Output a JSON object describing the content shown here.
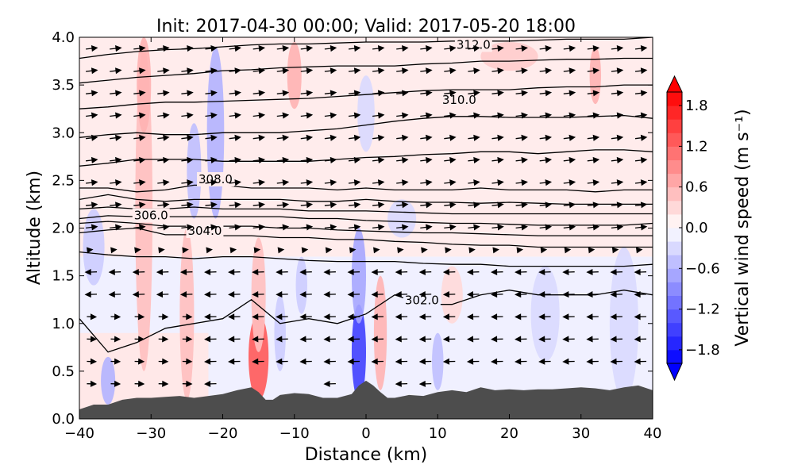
{
  "chart_data": {
    "type": "contour",
    "title": "Init: 2017-04-30 00:00; Valid: 2017-05-20 18:00",
    "xlabel": "Distance (km)",
    "ylabel": "Altitude (km)",
    "xlim": [
      -40,
      40
    ],
    "ylim": [
      0.0,
      4.0
    ],
    "x_ticks": [
      -40,
      -30,
      -20,
      -10,
      0,
      10,
      20,
      30,
      40
    ],
    "x_tick_labels": [
      "−40",
      "−30",
      "−20",
      "−10",
      "0",
      "10",
      "20",
      "30",
      "40"
    ],
    "y_ticks": [
      0.0,
      0.5,
      1.0,
      1.5,
      2.0,
      2.5,
      3.0,
      3.5,
      4.0
    ],
    "y_tick_labels": [
      "0.0",
      "0.5",
      "1.0",
      "1.5",
      "2.0",
      "2.5",
      "3.0",
      "3.5",
      "4.0"
    ],
    "colorbar": {
      "label": "Vertical wind speed (m s⁻¹)",
      "range": [
        -2.0,
        2.0
      ],
      "extend": "both",
      "ticks": [
        1.8,
        1.2,
        0.6,
        0.0,
        -0.6,
        -1.2,
        -1.8
      ],
      "tick_labels": [
        "1.8",
        "1.2",
        "0.6",
        "0.0",
        "−0.6",
        "−1.2",
        "−1.8"
      ],
      "color_low": "#0000ff",
      "color_high": "#ff0000"
    },
    "terrain": {
      "color": "#4d4d4d",
      "x": [
        -40,
        -38,
        -36,
        -34,
        -32,
        -30,
        -28,
        -26,
        -24,
        -22,
        -20,
        -18,
        -16,
        -15,
        -14,
        -13,
        -12,
        -10,
        -8,
        -6,
        -4,
        -2,
        -1,
        0,
        1,
        2,
        3,
        4,
        6,
        8,
        10,
        12,
        14,
        16,
        18,
        20,
        22,
        24,
        26,
        28,
        30,
        32,
        34,
        36,
        38,
        40
      ],
      "y": [
        0.1,
        0.15,
        0.15,
        0.2,
        0.22,
        0.22,
        0.23,
        0.24,
        0.22,
        0.24,
        0.26,
        0.3,
        0.33,
        0.28,
        0.2,
        0.2,
        0.25,
        0.27,
        0.26,
        0.22,
        0.22,
        0.26,
        0.35,
        0.4,
        0.35,
        0.28,
        0.22,
        0.22,
        0.25,
        0.24,
        0.28,
        0.3,
        0.28,
        0.33,
        0.3,
        0.31,
        0.3,
        0.31,
        0.31,
        0.32,
        0.33,
        0.32,
        0.3,
        0.33,
        0.35,
        0.3
      ]
    },
    "w_features": [
      {
        "x": -31,
        "y": 2.2,
        "rx": 1.2,
        "ry": 1.7,
        "w": 0.5
      },
      {
        "x": -31,
        "y": 3.5,
        "rx": 1.0,
        "ry": 0.5,
        "w": 0.6
      },
      {
        "x": -36,
        "y": 0.4,
        "rx": 1.0,
        "ry": 0.25,
        "w": -0.6
      },
      {
        "x": -38,
        "y": 1.8,
        "rx": 1.5,
        "ry": 0.4,
        "w": -0.4
      },
      {
        "x": -25,
        "y": 1.1,
        "rx": 1.0,
        "ry": 0.9,
        "w": 0.5
      },
      {
        "x": -24,
        "y": 2.6,
        "rx": 1.0,
        "ry": 0.5,
        "w": -0.5
      },
      {
        "x": -21,
        "y": 3.0,
        "rx": 1.2,
        "ry": 0.9,
        "w": -0.6
      },
      {
        "x": -15,
        "y": 0.65,
        "rx": 1.4,
        "ry": 0.45,
        "w": 1.3
      },
      {
        "x": -15,
        "y": 1.3,
        "rx": 1.0,
        "ry": 0.6,
        "w": 0.5
      },
      {
        "x": -12,
        "y": 0.9,
        "rx": 0.8,
        "ry": 0.4,
        "w": -0.4
      },
      {
        "x": -10,
        "y": 3.6,
        "rx": 1.0,
        "ry": 0.35,
        "w": 0.6
      },
      {
        "x": -9,
        "y": 1.4,
        "rx": 0.8,
        "ry": 0.3,
        "w": -0.4
      },
      {
        "x": -1,
        "y": 0.7,
        "rx": 1.0,
        "ry": 0.5,
        "w": -1.5
      },
      {
        "x": -1,
        "y": 1.5,
        "rx": 1.0,
        "ry": 0.5,
        "w": -0.7
      },
      {
        "x": 2,
        "y": 0.9,
        "rx": 0.9,
        "ry": 0.6,
        "w": 0.6
      },
      {
        "x": 10,
        "y": 0.6,
        "rx": 0.8,
        "ry": 0.3,
        "w": -0.5
      },
      {
        "x": 12,
        "y": 1.3,
        "rx": 1.5,
        "ry": 0.3,
        "w": 0.3
      },
      {
        "x": 32,
        "y": 3.6,
        "rx": 0.8,
        "ry": 0.3,
        "w": 0.6
      },
      {
        "x": 20,
        "y": 3.8,
        "rx": 4.0,
        "ry": 0.15,
        "w": 0.4
      },
      {
        "x": 36,
        "y": 1.0,
        "rx": 2.0,
        "ry": 0.8,
        "w": -0.3
      },
      {
        "x": 25,
        "y": 1.1,
        "rx": 2.0,
        "ry": 0.5,
        "w": -0.3
      },
      {
        "x": 5,
        "y": 2.1,
        "rx": 2.0,
        "ry": 0.2,
        "w": -0.3
      },
      {
        "x": 0,
        "y": 3.2,
        "rx": 1.2,
        "ry": 0.4,
        "w": -0.3
      }
    ],
    "isentropes": [
      {
        "level": "",
        "y": [
          1.05,
          0.7,
          0.8,
          0.95,
          1.0,
          1.05,
          1.25,
          1.0,
          1.05,
          1.0,
          1.1,
          1.3,
          1.2,
          1.2,
          1.3,
          1.35,
          1.3,
          1.3,
          1.3,
          1.35,
          1.3
        ]
      },
      {
        "level": "",
        "y": [
          1.75,
          1.72,
          1.7,
          1.7,
          1.68,
          1.7,
          1.7,
          1.68,
          1.66,
          1.65,
          1.65,
          1.65,
          1.63,
          1.62,
          1.62,
          1.6,
          1.6,
          1.6,
          1.6,
          1.6,
          1.62
        ]
      },
      {
        "level": "",
        "y": [
          1.95,
          1.98,
          2.0,
          1.93,
          1.93,
          1.92,
          1.92,
          1.9,
          1.9,
          1.88,
          1.88,
          1.86,
          1.85,
          1.83,
          1.82,
          1.82,
          1.8,
          1.8,
          1.8,
          1.8,
          1.8
        ]
      },
      {
        "level": "",
        "y": [
          2.05,
          2.07,
          2.05,
          2.02,
          2.02,
          2.02,
          2.02,
          2.0,
          2.0,
          1.98,
          1.97,
          1.96,
          1.95,
          1.95,
          1.94,
          1.93,
          1.92,
          1.92,
          1.92,
          1.92,
          1.92
        ]
      },
      {
        "level": "",
        "y": [
          2.1,
          2.13,
          2.12,
          2.12,
          2.12,
          2.12,
          2.12,
          2.12,
          2.1,
          2.1,
          2.08,
          2.07,
          2.06,
          2.05,
          2.05,
          2.04,
          2.03,
          2.03,
          2.03,
          2.03,
          2.05
        ]
      },
      {
        "level": "",
        "y": [
          2.2,
          2.22,
          2.2,
          2.2,
          2.22,
          2.2,
          2.2,
          2.2,
          2.18,
          2.18,
          2.18,
          2.17,
          2.16,
          2.15,
          2.15,
          2.15,
          2.15,
          2.15,
          2.15,
          2.15,
          2.15
        ]
      },
      {
        "level": "",
        "y": [
          2.3,
          2.35,
          2.3,
          2.28,
          2.3,
          2.3,
          2.3,
          2.3,
          2.28,
          2.28,
          2.3,
          2.28,
          2.27,
          2.27,
          2.26,
          2.27,
          2.26,
          2.25,
          2.25,
          2.25,
          2.25
        ]
      },
      {
        "level": "",
        "y": [
          2.42,
          2.42,
          2.38,
          2.4,
          2.45,
          2.45,
          2.42,
          2.42,
          2.42,
          2.4,
          2.42,
          2.4,
          2.4,
          2.4,
          2.42,
          2.4,
          2.4,
          2.4,
          2.38,
          2.4,
          2.4
        ]
      },
      {
        "level": "",
        "y": [
          2.65,
          2.68,
          2.72,
          2.72,
          2.72,
          2.7,
          2.7,
          2.7,
          2.7,
          2.72,
          2.74,
          2.75,
          2.77,
          2.78,
          2.8,
          2.8,
          2.78,
          2.8,
          2.82,
          2.82,
          2.8
        ]
      },
      {
        "level": "",
        "y": [
          2.95,
          2.98,
          3.0,
          2.98,
          2.98,
          3.0,
          3.0,
          3.0,
          3.02,
          3.04,
          3.08,
          3.12,
          3.15,
          3.17,
          3.17,
          3.16,
          3.16,
          3.16,
          3.17,
          3.18,
          3.15
        ]
      },
      {
        "level": "",
        "y": [
          3.25,
          3.27,
          3.3,
          3.32,
          3.32,
          3.33,
          3.34,
          3.35,
          3.36,
          3.38,
          3.4,
          3.42,
          3.44,
          3.45,
          3.45,
          3.45,
          3.47,
          3.48,
          3.48,
          3.5,
          3.5
        ]
      },
      {
        "level": "",
        "y": [
          3.52,
          3.55,
          3.58,
          3.6,
          3.62,
          3.65,
          3.66,
          3.68,
          3.69,
          3.7,
          3.7,
          3.7,
          3.72,
          3.73,
          3.75,
          3.75,
          3.76,
          3.77,
          3.77,
          3.78,
          3.78
        ]
      },
      {
        "level": "",
        "y": [
          3.78,
          3.82,
          3.85,
          3.87,
          3.88,
          3.9,
          3.92,
          3.93,
          3.93,
          3.94,
          3.95,
          3.95,
          3.95,
          3.96,
          3.96,
          3.96,
          3.97,
          3.98,
          3.98,
          3.98,
          4.0
        ]
      }
    ],
    "contour_labels": [
      {
        "text": "312.0",
        "x": 15.0,
        "y": 3.88
      },
      {
        "text": "310.0",
        "x": 13.0,
        "y": 3.3
      },
      {
        "text": "308.0",
        "x": -21.0,
        "y": 2.47
      },
      {
        "text": "306.0",
        "x": -30.0,
        "y": 2.09
      },
      {
        "text": "304.0",
        "x": -22.5,
        "y": 1.93
      },
      {
        "text": "302.0",
        "x": 7.8,
        "y": 1.2
      }
    ],
    "wind_vectors": {
      "nx": 24,
      "ny": 16,
      "u_low": -1.0,
      "u_high": 1.0,
      "transition_altitude": 1.7
    }
  }
}
